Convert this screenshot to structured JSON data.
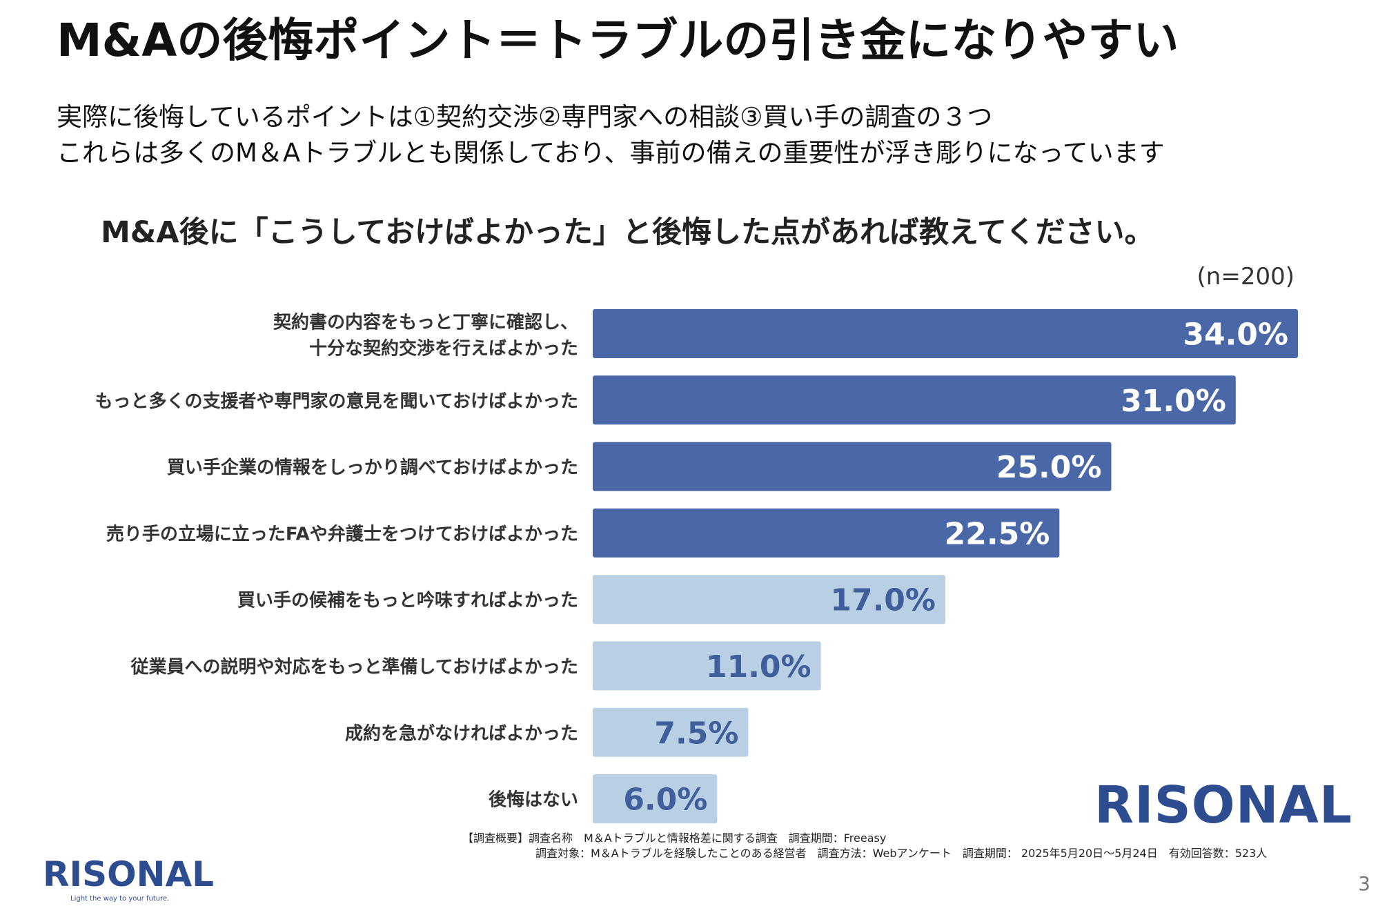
{
  "slide": {
    "title": "M&Aの後悔ポイント＝トラブルの引き金になりやすい",
    "lead_line1": "実際に後悔しているポイントは①契約交渉②専門家への相談③買い手の調査の３つ",
    "lead_line2": "これらは多くのM＆Aトラブルとも関係しており、事前の備えの重要性が浮き彫りになっています",
    "page_number": "3"
  },
  "chart_data": {
    "type": "bar",
    "orientation": "horizontal",
    "title": "M&A後に「こうしておけばよかった」と後悔した点があれば教えてください。",
    "sample_size": "(n=200)",
    "categories": [
      [
        "契約書の内容をもっと丁寧に確認し、",
        "十分な契約交渉を行えばよかった"
      ],
      [
        "もっと多くの支援者や専門家の意見を聞いておけばよかった"
      ],
      [
        "買い手企業の情報をしっかり調べておけばよかった"
      ],
      [
        "売り手の立場に立ったFAや弁護士をつけておけばよかった"
      ],
      [
        "買い手の候補をもっと吟味すればよかった"
      ],
      [
        "従業員への説明や対応をもっと準備しておけばよかった"
      ],
      [
        "成約を急がなければよかった"
      ],
      [
        "後悔はない"
      ]
    ],
    "values": [
      34.0,
      31.0,
      25.0,
      22.5,
      17.0,
      11.0,
      7.5,
      6.0
    ],
    "value_labels": [
      "34.0%",
      "31.0%",
      "25.0%",
      "22.5%",
      "17.0%",
      "11.0%",
      "7.5%",
      "6.0%"
    ],
    "highlight_count": 4,
    "xlim": [
      0,
      34.0
    ],
    "grid": false,
    "legend": "none",
    "colors": {
      "highlight_bar": "#4a68a8",
      "highlight_text": "#ffffff",
      "normal_bar": "#b9cfe3",
      "normal_text": "#3e5e9c"
    }
  },
  "footnote": {
    "line1": "【調査概要】調査名称　M＆Aトラブルと情報格差に関する調査　調査期間：Freeasy",
    "line2": "調査対象：M＆Aトラブルを経験したことのある経営者　調査方法：Webアンケート　調査期間： 2025年5月20日～5月24日　有効回答数：523人"
  },
  "brand": {
    "logo_text": "RISONAL",
    "tagline": "Light the way to your future.",
    "color": "#2e4d91"
  }
}
